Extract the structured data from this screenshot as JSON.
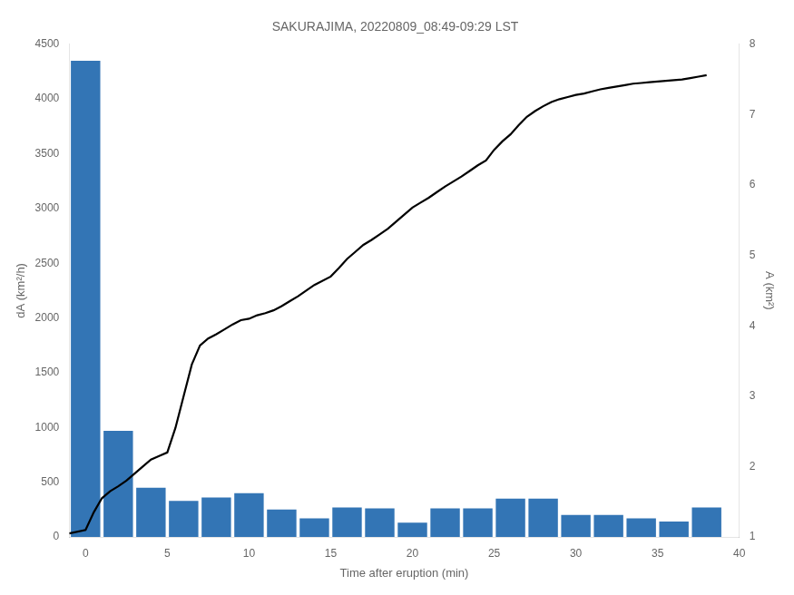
{
  "chart_data": {
    "type": "bar",
    "title": "SAKURAJIMA, 20220809_08:49-09:29 LST",
    "xlabel": "Time after eruption (min)",
    "ylabel": "dA (km²/h)",
    "y2label": "A (km²)",
    "xlim": [
      -1,
      40
    ],
    "xticks": [
      0,
      5,
      10,
      15,
      20,
      25,
      30,
      35,
      40
    ],
    "ylim": [
      0,
      4500
    ],
    "yticks": [
      0,
      500,
      1000,
      1500,
      2000,
      2500,
      3000,
      3500,
      4000,
      4500
    ],
    "y2lim": [
      1,
      8
    ],
    "y2ticks": [
      1,
      2,
      3,
      4,
      5,
      6,
      7,
      8
    ],
    "grid": false,
    "series": [
      {
        "type": "bar",
        "color": "#3375B5",
        "x": [
          0,
          2,
          4,
          6,
          8,
          10,
          12,
          14,
          16,
          18,
          20,
          22,
          24,
          26,
          28,
          30,
          32,
          34,
          36,
          38
        ],
        "values": [
          4350,
          970,
          450,
          330,
          360,
          400,
          250,
          170,
          270,
          260,
          130,
          260,
          260,
          350,
          350,
          200,
          200,
          170,
          140,
          270
        ]
      },
      {
        "type": "line",
        "color": "#000000",
        "axis": "y2",
        "x": [
          -1.0,
          0.0,
          0.5,
          1.0,
          1.5,
          2.0,
          2.5,
          3.0,
          3.5,
          4.0,
          4.5,
          5.0,
          5.5,
          6.0,
          6.5,
          7.0,
          7.5,
          8.0,
          8.5,
          9.0,
          9.5,
          10.0,
          10.5,
          11.0,
          11.5,
          12.0,
          12.5,
          13.0,
          13.5,
          14.0,
          15.0,
          15.5,
          16.0,
          16.5,
          17.0,
          17.5,
          18.0,
          18.5,
          19.0,
          19.5,
          20.0,
          20.5,
          21.0,
          21.5,
          22.0,
          22.5,
          23.0,
          23.5,
          24.0,
          24.5,
          25.0,
          25.5,
          26.0,
          26.5,
          27.0,
          27.5,
          28.0,
          28.5,
          29.0,
          29.5,
          30.0,
          30.5,
          31.0,
          31.5,
          32.0,
          32.5,
          33.0,
          33.5,
          34.0,
          34.5,
          35.0,
          35.5,
          36.0,
          36.5,
          37.0,
          37.5,
          38.0
        ],
        "values": [
          1.05,
          1.1,
          1.35,
          1.55,
          1.65,
          1.72,
          1.8,
          1.9,
          2.0,
          2.1,
          2.15,
          2.2,
          2.55,
          3.0,
          3.45,
          3.72,
          3.82,
          3.88,
          3.95,
          4.02,
          4.08,
          4.1,
          4.15,
          4.18,
          4.22,
          4.28,
          4.35,
          4.42,
          4.5,
          4.58,
          4.7,
          4.82,
          4.95,
          5.05,
          5.15,
          5.22,
          5.3,
          5.38,
          5.48,
          5.58,
          5.68,
          5.75,
          5.82,
          5.9,
          5.98,
          6.05,
          6.12,
          6.2,
          6.28,
          6.35,
          6.5,
          6.62,
          6.72,
          6.85,
          6.97,
          7.05,
          7.12,
          7.18,
          7.22,
          7.25,
          7.28,
          7.3,
          7.33,
          7.36,
          7.38,
          7.4,
          7.42,
          7.44,
          7.45,
          7.46,
          7.47,
          7.48,
          7.49,
          7.5,
          7.52,
          7.54,
          7.56
        ]
      }
    ]
  }
}
